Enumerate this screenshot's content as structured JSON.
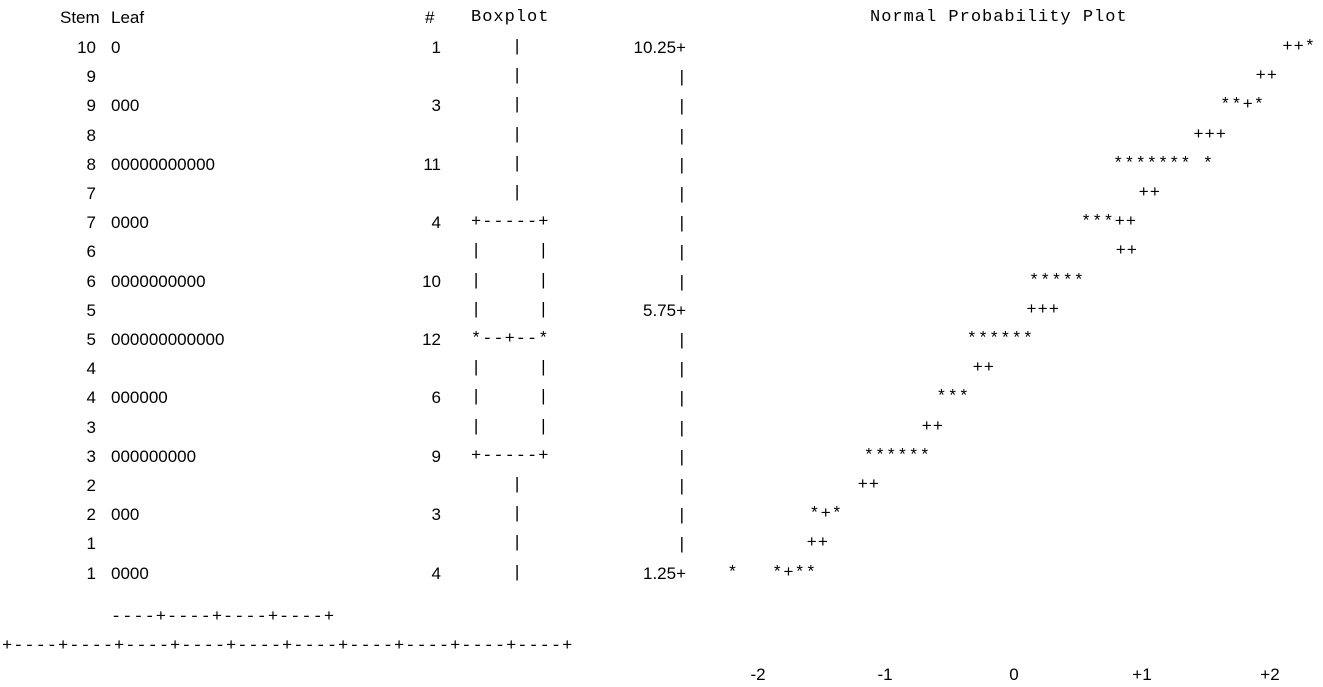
{
  "headers": {
    "stem": "Stem",
    "leaf": "Leaf",
    "count": "#",
    "boxplot": "Boxplot",
    "normal_plot": "Normal Probability Plot"
  },
  "rows": [
    {
      "stem": "10",
      "leaf": "0",
      "count": "1",
      "box": "|"
    },
    {
      "stem": "9",
      "leaf": "",
      "count": "",
      "box": "|"
    },
    {
      "stem": "9",
      "leaf": "000",
      "count": "3",
      "box": "|"
    },
    {
      "stem": "8",
      "leaf": "",
      "count": "",
      "box": "|"
    },
    {
      "stem": "8",
      "leaf": "00000000000",
      "count": "11",
      "box": "|"
    },
    {
      "stem": "7",
      "leaf": "",
      "count": "",
      "box": "|"
    },
    {
      "stem": "7",
      "leaf": "0000",
      "count": "4",
      "box": "+-----+"
    },
    {
      "stem": "6",
      "leaf": "",
      "count": "",
      "box": "|     |"
    },
    {
      "stem": "6",
      "leaf": "0000000000",
      "count": "10",
      "box": "|     |"
    },
    {
      "stem": "5",
      "leaf": "",
      "count": "",
      "box": "|     |"
    },
    {
      "stem": "5",
      "leaf": "000000000000",
      "count": "12",
      "box": "*--+--*"
    },
    {
      "stem": "4",
      "leaf": "",
      "count": "",
      "box": "|     |"
    },
    {
      "stem": "4",
      "leaf": "000000",
      "count": "6",
      "box": "|     |"
    },
    {
      "stem": "3",
      "leaf": "",
      "count": "",
      "box": "|     |"
    },
    {
      "stem": "3",
      "leaf": "000000000",
      "count": "9",
      "box": "+-----+"
    },
    {
      "stem": "2",
      "leaf": "",
      "count": "",
      "box": "|"
    },
    {
      "stem": "2",
      "leaf": "000",
      "count": "3",
      "box": "|"
    },
    {
      "stem": "1",
      "leaf": "",
      "count": "",
      "box": "|"
    },
    {
      "stem": "1",
      "leaf": "0000",
      "count": "4",
      "box": "|"
    }
  ],
  "leaf_scale": "----+----+----+----+",
  "npp_bottom_axis": "+----+----+----+----+----+----+----+----+----+----+",
  "chart_data": {
    "type": "scatter",
    "title": "Normal Probability Plot",
    "y_ticks": [
      "10.25+",
      "5.75+",
      "1.25+"
    ],
    "x_ticks": [
      "-2",
      "-1",
      "0",
      "+1",
      "+2"
    ],
    "ylim": [
      1,
      10.5
    ],
    "xlim": [
      -2.5,
      2.5
    ],
    "rows": [
      "++*",
      "++",
      "**+*",
      "+++",
      "******* *",
      "++",
      "***++",
      "++",
      "*****",
      "+++",
      "******",
      "++",
      "***",
      "++",
      "******",
      "++",
      "*+*",
      "++",
      "*   *+**"
    ],
    "stem_leaf_frequencies": [
      {
        "value": 10,
        "count": 1
      },
      {
        "value": 9,
        "count": 3
      },
      {
        "value": 8,
        "count": 11
      },
      {
        "value": 7,
        "count": 4
      },
      {
        "value": 6,
        "count": 10
      },
      {
        "value": 5,
        "count": 12
      },
      {
        "value": 4,
        "count": 6
      },
      {
        "value": 3,
        "count": 9
      },
      {
        "value": 2,
        "count": 3
      },
      {
        "value": 1,
        "count": 4
      }
    ]
  }
}
